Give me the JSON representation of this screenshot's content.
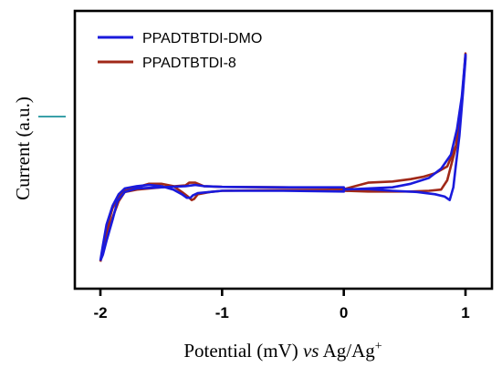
{
  "chart_data": {
    "type": "line",
    "xlabel_parts": [
      "Potential (mV) ",
      "vs",
      " Ag/Ag",
      "+"
    ],
    "ylabel": "Current (a.u.)",
    "xlim": [
      -2.2,
      1.2
    ],
    "ylim": [
      0,
      1
    ],
    "xticks": [
      -2,
      -1,
      0,
      1
    ],
    "xtick_labels": [
      "-2",
      "-1",
      "0",
      "1"
    ],
    "yticks_shown": false,
    "legend_position": "top-left",
    "series": [
      {
        "name": "PPADTBTDI-DMO",
        "color": "#1a1adc",
        "x": [
          -2.0,
          -1.98,
          -1.95,
          -1.9,
          -1.85,
          -1.8,
          -1.7,
          -1.6,
          -1.5,
          -1.4,
          -1.33,
          -1.29,
          -1.26,
          -1.24,
          -1.2,
          -1.1,
          -1.0,
          -0.5,
          0.0,
          0.0,
          0.2,
          0.4,
          0.55,
          0.7,
          0.8,
          0.88,
          0.93,
          0.97,
          1.0,
          1.0,
          0.98,
          0.95,
          0.92,
          0.9,
          0.87,
          0.83,
          0.75,
          0.6,
          0.4,
          0.2,
          0.0,
          0.0,
          -0.5,
          -1.0,
          -1.15,
          -1.22,
          -1.3,
          -1.5,
          -1.7,
          -1.8,
          -1.86,
          -1.9,
          -1.95,
          -1.98,
          -2.0
        ],
        "y": [
          0.015,
          0.08,
          0.17,
          0.25,
          0.3,
          0.325,
          0.335,
          0.34,
          0.335,
          0.32,
          0.3,
          0.285,
          0.285,
          0.295,
          0.305,
          0.31,
          0.315,
          0.315,
          0.312,
          0.32,
          0.325,
          0.33,
          0.345,
          0.37,
          0.41,
          0.47,
          0.58,
          0.72,
          0.9,
          0.88,
          0.74,
          0.55,
          0.42,
          0.33,
          0.275,
          0.29,
          0.3,
          0.31,
          0.315,
          0.322,
          0.322,
          0.33,
          0.33,
          0.332,
          0.335,
          0.34,
          0.335,
          0.33,
          0.325,
          0.31,
          0.27,
          0.19,
          0.1,
          0.04,
          0.015
        ]
      },
      {
        "name": "PPADTBTDI-8",
        "color": "#a02818",
        "x": [
          -2.0,
          -1.98,
          -1.95,
          -1.9,
          -1.85,
          -1.8,
          -1.7,
          -1.6,
          -1.5,
          -1.4,
          -1.33,
          -1.28,
          -1.25,
          -1.23,
          -1.2,
          -1.1,
          -1.0,
          -0.5,
          0.0,
          0.0,
          0.2,
          0.4,
          0.55,
          0.65,
          0.75,
          0.85,
          0.93,
          0.97,
          1.0,
          1.0,
          0.97,
          0.92,
          0.85,
          0.8,
          0.7,
          0.55,
          0.4,
          0.2,
          0.0,
          0.0,
          -0.5,
          -1.0,
          -1.15,
          -1.22,
          -1.27,
          -1.3,
          -1.5,
          -1.7,
          -1.8,
          -1.85,
          -1.9,
          -1.95,
          -1.98,
          -2.0
        ],
        "y": [
          0.01,
          0.06,
          0.15,
          0.24,
          0.29,
          0.315,
          0.33,
          0.345,
          0.345,
          0.335,
          0.31,
          0.29,
          0.275,
          0.28,
          0.3,
          0.31,
          0.315,
          0.318,
          0.315,
          0.322,
          0.35,
          0.355,
          0.365,
          0.375,
          0.39,
          0.42,
          0.52,
          0.7,
          0.905,
          0.89,
          0.7,
          0.5,
          0.36,
          0.32,
          0.315,
          0.312,
          0.312,
          0.312,
          0.315,
          0.325,
          0.33,
          0.332,
          0.335,
          0.35,
          0.35,
          0.338,
          0.33,
          0.32,
          0.31,
          0.27,
          0.2,
          0.12,
          0.06,
          0.01
        ]
      }
    ]
  }
}
